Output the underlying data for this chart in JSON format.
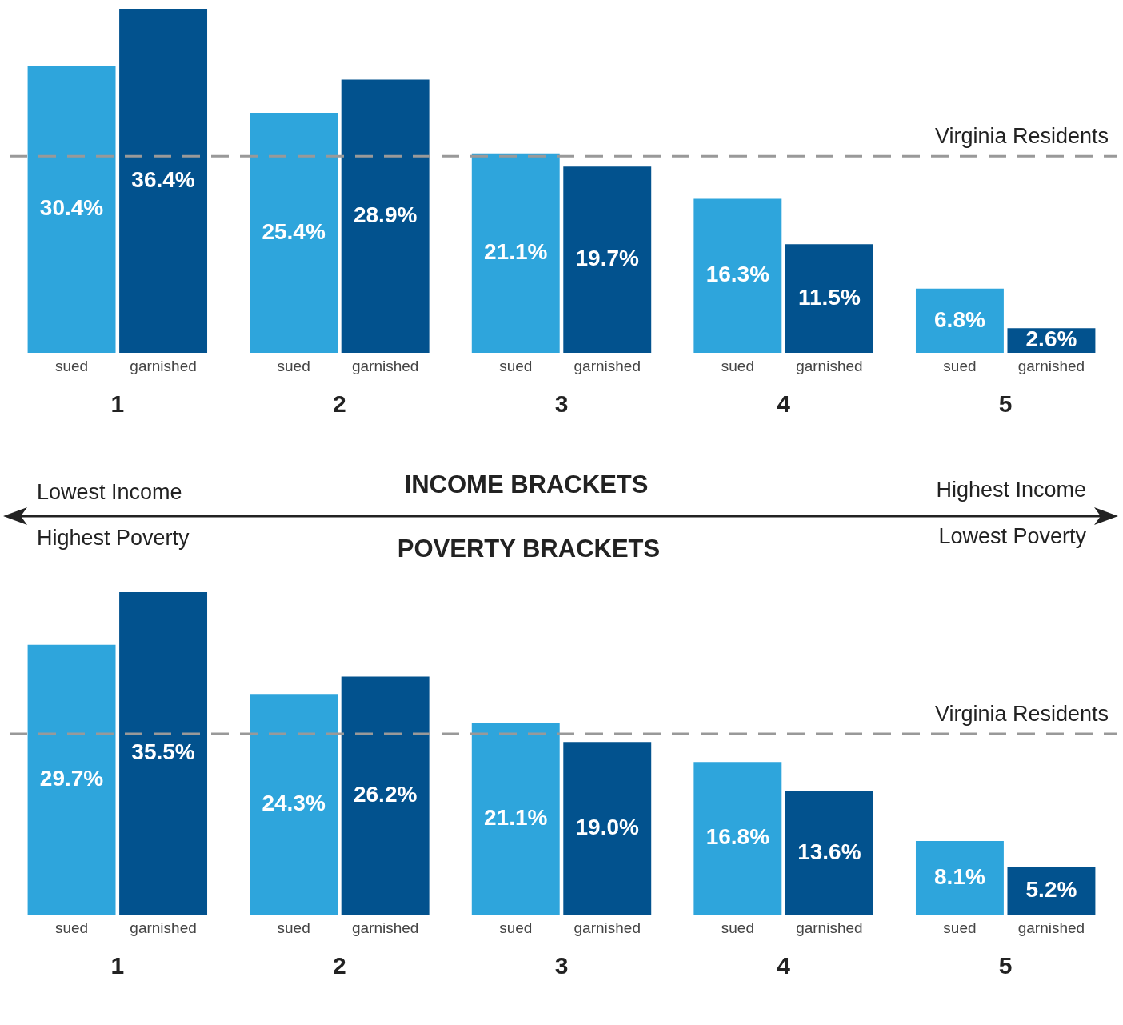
{
  "chart_data": [
    {
      "type": "bar",
      "xlabel": "INCOME BRACKETS",
      "categories": [
        "1",
        "2",
        "3",
        "4",
        "5"
      ],
      "series": [
        {
          "name": "sued",
          "color": "#2ea5dc",
          "values": [
            30.4,
            25.4,
            21.1,
            16.3,
            6.8
          ],
          "value_labels": [
            "30.4%",
            "25.4%",
            "21.1%",
            "16.3%",
            "6.8%"
          ]
        },
        {
          "name": "garnished",
          "color": "#02528e",
          "values": [
            36.4,
            28.9,
            19.7,
            11.5,
            2.6
          ],
          "value_labels": [
            "36.4%",
            "28.9%",
            "19.7%",
            "11.5%",
            "2.6%"
          ]
        }
      ],
      "ref_lines": [
        {
          "axis": "y",
          "value": 20.8,
          "label": "Virginia Residents",
          "color": "#999999",
          "line_style": "dashed"
        }
      ],
      "annotations": [
        "Lowest Income",
        "Highest Income"
      ],
      "tick_labels": "x",
      "grid": false,
      "legend": false
    },
    {
      "type": "bar",
      "title": "POVERTY BRACKETS",
      "categories": [
        "1",
        "2",
        "3",
        "4",
        "5"
      ],
      "series": [
        {
          "name": "sued",
          "color": "#2ea5dc",
          "values": [
            29.7,
            24.3,
            21.1,
            16.8,
            8.1
          ],
          "value_labels": [
            "29.7%",
            "24.3%",
            "21.1%",
            "16.8%",
            "8.1%"
          ]
        },
        {
          "name": "garnished",
          "color": "#02528e",
          "values": [
            35.5,
            26.2,
            19.0,
            13.6,
            5.2
          ],
          "value_labels": [
            "35.5%",
            "26.2%",
            "19.0%",
            "13.6%",
            "5.2%"
          ]
        }
      ],
      "ref_lines": [
        {
          "axis": "y",
          "value": 19.9,
          "label": "Virginia Residents",
          "color": "#999999",
          "line_style": "dashed"
        }
      ],
      "annotations": [
        "Highest Poverty",
        "Lowest Poverty"
      ],
      "tick_labels": "x",
      "grid": false,
      "legend": false
    }
  ]
}
